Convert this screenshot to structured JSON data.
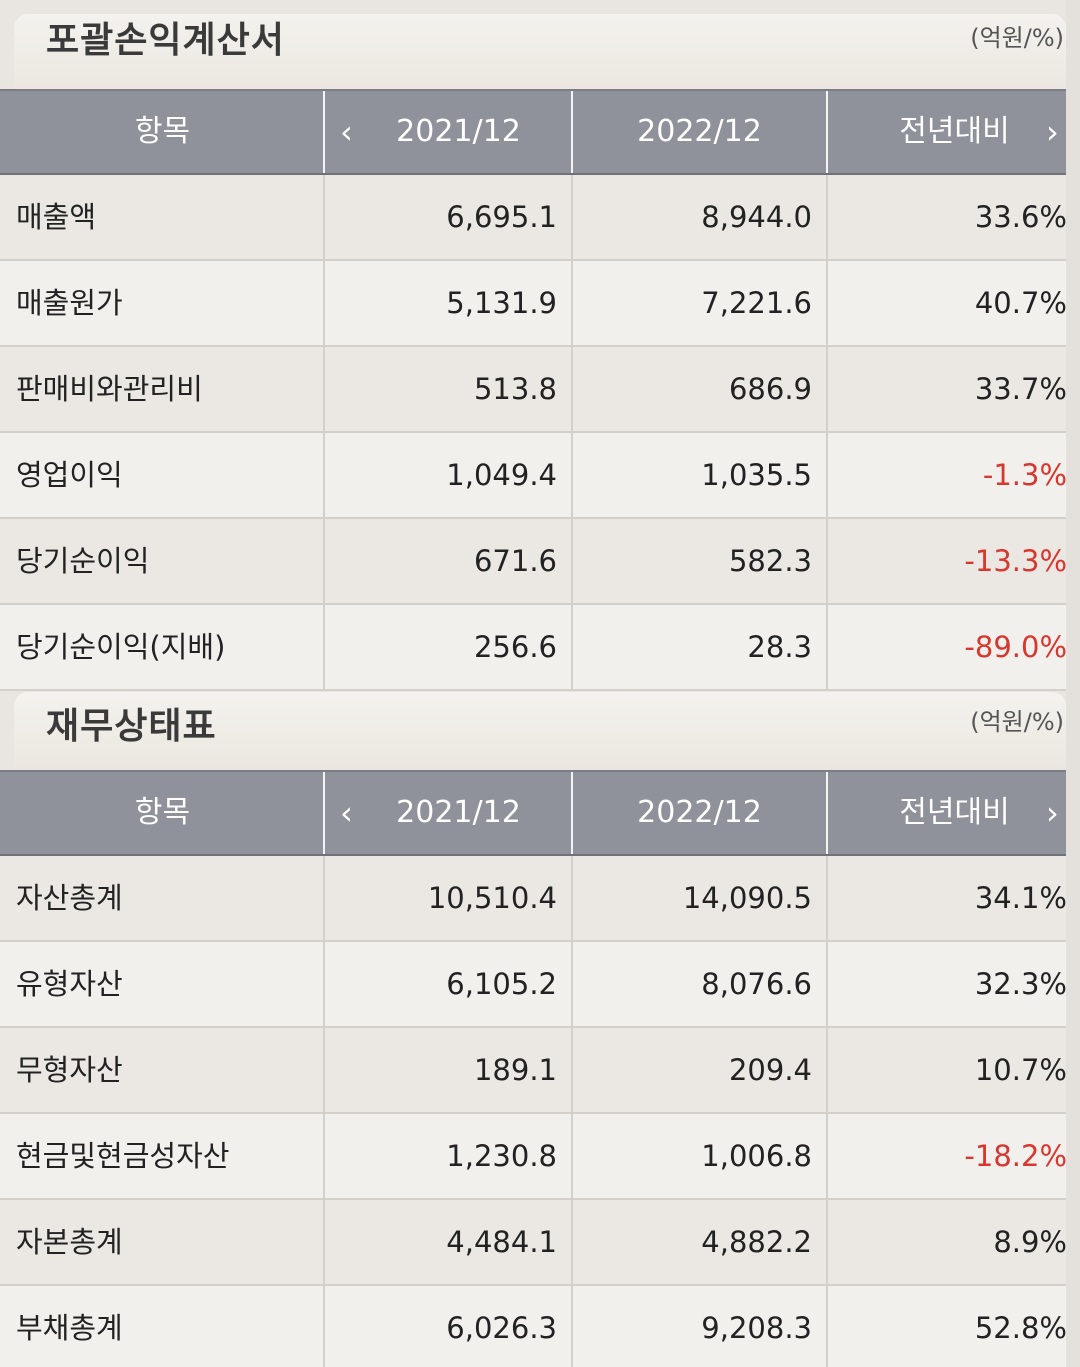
{
  "sections": [
    {
      "title": "포괄손익계산서",
      "unit": "(억원/%)",
      "headers": [
        "항목",
        "2021/12",
        "2022/12",
        "전년대비"
      ],
      "rows": [
        {
          "label": "매출액",
          "v2021": "6,695.1",
          "v2022": "8,944.0",
          "yoy": "33.6%",
          "negative": false
        },
        {
          "label": "매출원가",
          "v2021": "5,131.9",
          "v2022": "7,221.6",
          "yoy": "40.7%",
          "negative": false
        },
        {
          "label": "판매비와관리비",
          "v2021": "513.8",
          "v2022": "686.9",
          "yoy": "33.7%",
          "negative": false
        },
        {
          "label": "영업이익",
          "v2021": "1,049.4",
          "v2022": "1,035.5",
          "yoy": "-1.3%",
          "negative": true
        },
        {
          "label": "당기순이익",
          "v2021": "671.6",
          "v2022": "582.3",
          "yoy": "-13.3%",
          "negative": true
        },
        {
          "label": "당기순이익(지배)",
          "v2021": "256.6",
          "v2022": "28.3",
          "yoy": "-89.0%",
          "negative": true
        }
      ]
    },
    {
      "title": "재무상태표",
      "unit": "(억원/%)",
      "headers": [
        "항목",
        "2021/12",
        "2022/12",
        "전년대비"
      ],
      "rows": [
        {
          "label": "자산총계",
          "v2021": "10,510.4",
          "v2022": "14,090.5",
          "yoy": "34.1%",
          "negative": false
        },
        {
          "label": "유형자산",
          "v2021": "6,105.2",
          "v2022": "8,076.6",
          "yoy": "32.3%",
          "negative": false
        },
        {
          "label": "무형자산",
          "v2021": "189.1",
          "v2022": "209.4",
          "yoy": "10.7%",
          "negative": false
        },
        {
          "label": "현금및현금성자산",
          "v2021": "1,230.8",
          "v2022": "1,006.8",
          "yoy": "-18.2%",
          "negative": true
        },
        {
          "label": "자본총계",
          "v2021": "4,484.1",
          "v2022": "4,882.2",
          "yoy": "8.9%",
          "negative": false
        },
        {
          "label": "부채총계",
          "v2021": "6,026.3",
          "v2022": "9,208.3",
          "yoy": "52.8%",
          "negative": false
        }
      ]
    }
  ],
  "icons": {
    "prev": "chevron-left-icon",
    "next": "chevron-right-icon"
  }
}
